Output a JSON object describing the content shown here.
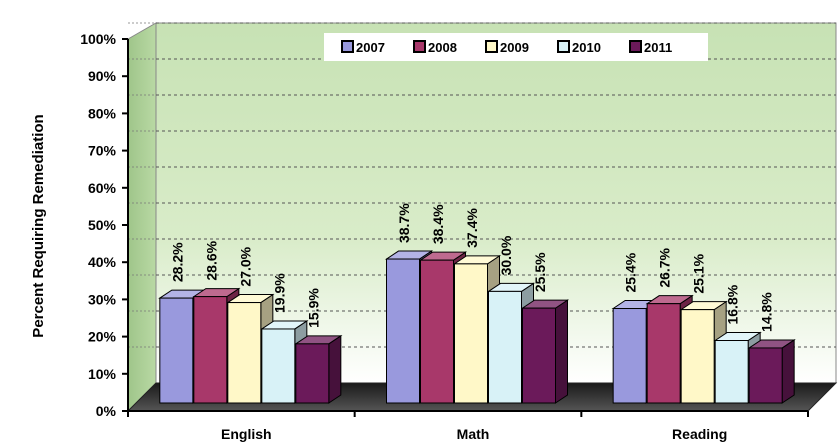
{
  "chart_data": {
    "type": "bar",
    "title": "",
    "xlabel": "",
    "ylabel": "Percent Requiring Remediation",
    "categories": [
      "English",
      "Math",
      "Reading"
    ],
    "ylim": [
      0,
      100
    ],
    "yticks": [
      "0%",
      "10%",
      "20%",
      "30%",
      "40%",
      "50%",
      "60%",
      "70%",
      "80%",
      "90%",
      "100%"
    ],
    "grid": true,
    "legend_position": "top-right",
    "series": [
      {
        "name": "2007",
        "values": [
          28.2,
          38.7,
          25.4
        ],
        "labels": [
          "28.2%",
          "38.7%",
          "25.4%"
        ],
        "color": "#9999dd"
      },
      {
        "name": "2008",
        "values": [
          28.6,
          38.4,
          26.7
        ],
        "labels": [
          "28.6%",
          "38.4%",
          "26.7%"
        ],
        "color": "#a8386a"
      },
      {
        "name": "2009",
        "values": [
          27.0,
          37.4,
          25.1
        ],
        "labels": [
          "27.0%",
          "37.4%",
          "25.1%"
        ],
        "color": "#fff8c8"
      },
      {
        "name": "2010",
        "values": [
          19.9,
          30.0,
          16.8
        ],
        "labels": [
          "19.9%",
          "30.0%",
          "16.8%"
        ],
        "color": "#d8f2f7"
      },
      {
        "name": "2011",
        "values": [
          15.9,
          25.5,
          14.8
        ],
        "labels": [
          "15.9%",
          "25.5%",
          "14.8%"
        ],
        "color": "#6b1a5a"
      }
    ]
  }
}
